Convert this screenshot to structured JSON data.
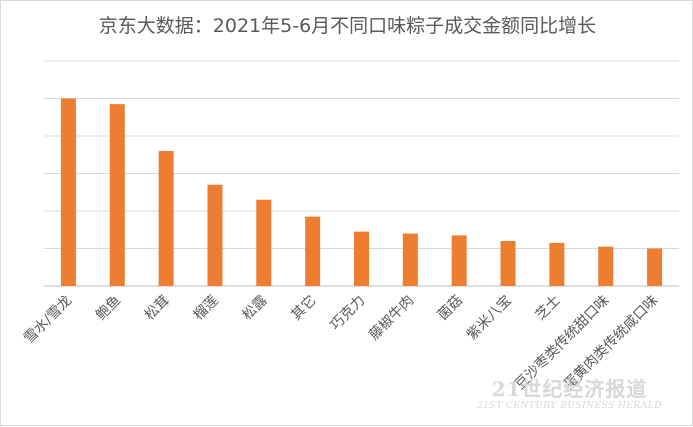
{
  "chart_data": {
    "type": "bar",
    "title": "京东大数据：2021年5-6月不同口味粽子成交金额同比增长",
    "xlabel": "",
    "ylabel": "",
    "categories": [
      "雪水/雪龙",
      "鲍鱼",
      "松茸",
      "榴莲",
      "松露",
      "其它",
      "巧克力",
      "藤椒牛肉",
      "菌菇",
      "紫米八宝",
      "芝士",
      "豆沙枣类传统甜口味",
      "蛋黄肉类传统咸口味"
    ],
    "values": [
      100,
      97,
      72,
      54,
      46,
      37,
      29,
      28,
      27,
      24,
      23,
      21,
      20
    ],
    "ylim": [
      0,
      120
    ],
    "grid": true,
    "legend": "none",
    "bar_color": "#ed7d31"
  },
  "watermark": {
    "cn": "21世纪经济报道",
    "en": "21ST CENTURY BUSINESS HERALD"
  }
}
